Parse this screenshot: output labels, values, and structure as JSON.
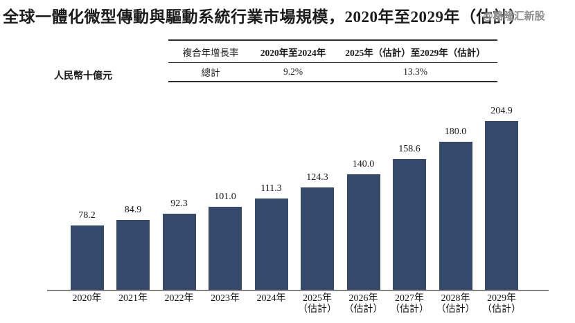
{
  "title": "全球一體化微型傳動與驅動系統行業市場規模，2020年至2029年（估計）",
  "watermark": "@格隆汇新股",
  "unit_label": "人民幣十億元",
  "cagr_table": {
    "headers": [
      "複合年增長率",
      "2020年至2024年",
      "2025年（估計）至2029年（估計）"
    ],
    "row": [
      "總計",
      "9.2%",
      "13.3%"
    ]
  },
  "chart_data": {
    "type": "bar",
    "title": "全球一體化微型傳動與驅動系統行業市場規模，2020年至2029年（估計）",
    "ylabel": "人民幣十億元",
    "xlabel": "",
    "categories": [
      "2020年",
      "2021年",
      "2022年",
      "2023年",
      "2024年",
      "2025年（估計）",
      "2026年（估計）",
      "2027年（估計）",
      "2028年（估計）",
      "2029年（估計）"
    ],
    "x_ticks": [
      {
        "year": "2020年",
        "note": ""
      },
      {
        "year": "2021年",
        "note": ""
      },
      {
        "year": "2022年",
        "note": ""
      },
      {
        "year": "2023年",
        "note": ""
      },
      {
        "year": "2024年",
        "note": ""
      },
      {
        "year": "2025年",
        "note": "（估計）"
      },
      {
        "year": "2026年",
        "note": "（估計）"
      },
      {
        "year": "2027年",
        "note": "（估計）"
      },
      {
        "year": "2028年",
        "note": "（估計）"
      },
      {
        "year": "2029年",
        "note": "（估計）"
      }
    ],
    "values": [
      78.2,
      84.9,
      92.3,
      101.0,
      111.3,
      124.3,
      140.0,
      158.6,
      180.0,
      204.9
    ],
    "ylim": [
      0,
      220
    ],
    "grid": false,
    "legend": false,
    "bar_color": "#35496C",
    "axis_color": "#848484",
    "label_color": "#161616"
  }
}
